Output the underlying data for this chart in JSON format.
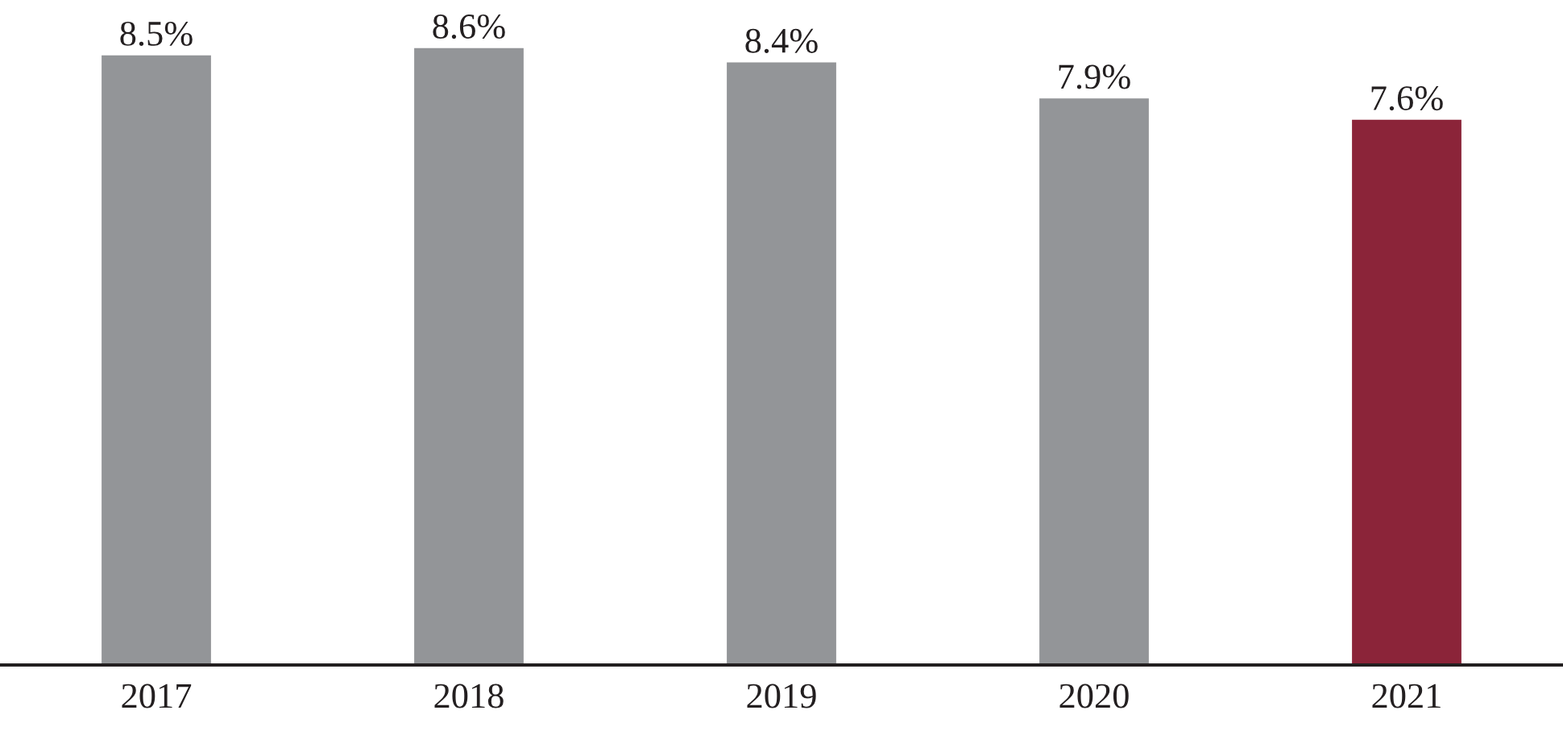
{
  "chart_data": {
    "type": "bar",
    "categories": [
      "2017",
      "2018",
      "2019",
      "2020",
      "2021"
    ],
    "values": [
      8.5,
      8.6,
      8.4,
      7.9,
      7.6
    ],
    "value_labels": [
      "8.5%",
      "8.6%",
      "8.4%",
      "7.9%",
      "7.6%"
    ],
    "colors": [
      "#939598",
      "#939598",
      "#939598",
      "#939598",
      "#8b2439"
    ],
    "grid": false,
    "legend": false
  }
}
